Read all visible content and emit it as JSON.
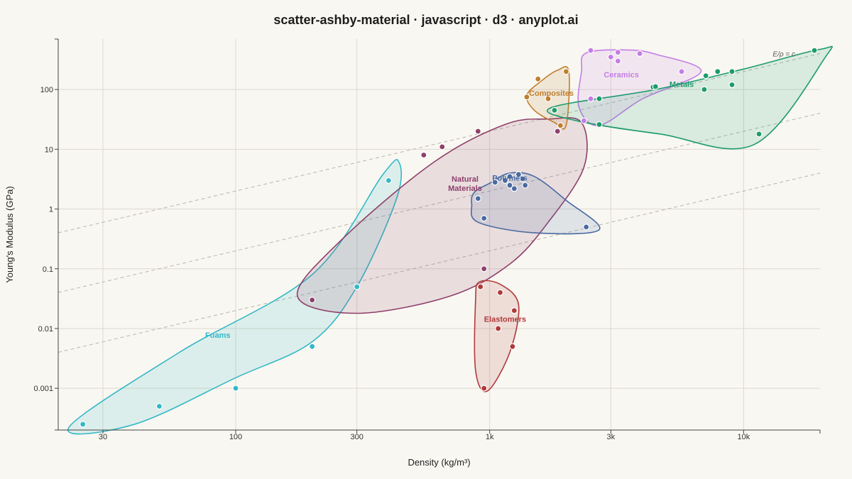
{
  "chart_data": {
    "type": "scatter",
    "title": "scatter-ashby-material · javascript · d3 · anyplot.ai",
    "xlabel": "Density (kg/m³)",
    "ylabel": "Young's Modulus (GPa)",
    "xscale": "log",
    "yscale": "log",
    "xlim": [
      20,
      20000
    ],
    "ylim": [
      0.0002,
      700
    ],
    "x_ticks": [
      {
        "value": 30,
        "label": "30"
      },
      {
        "value": 100,
        "label": "100"
      },
      {
        "value": 300,
        "label": "300"
      },
      {
        "value": 1000,
        "label": "1k"
      },
      {
        "value": 3000,
        "label": "3k"
      },
      {
        "value": 10000,
        "label": "10k"
      }
    ],
    "y_ticks": [
      {
        "value": 0.001,
        "label": "0.001"
      },
      {
        "value": 0.01,
        "label": "0.01"
      },
      {
        "value": 0.1,
        "label": "0.1"
      },
      {
        "value": 1,
        "label": "1"
      },
      {
        "value": 10,
        "label": "10"
      },
      {
        "value": 100,
        "label": "100"
      }
    ],
    "grid": true,
    "reference_line_label": "E/ρ = c",
    "reference_lines": [
      {
        "c": 0.02
      },
      {
        "c": 0.002
      },
      {
        "c": 0.0002
      }
    ],
    "series": [
      {
        "name": "Foams",
        "color": "#35b8c8",
        "label_at": [
          85,
          0.007
        ],
        "envelope": [
          [
            22,
            0.00022
          ],
          [
            60,
            0.004
          ],
          [
            200,
            0.08
          ],
          [
            380,
            3.8
          ],
          [
            440,
            6
          ],
          [
            430,
            1.5
          ],
          [
            300,
            0.05
          ],
          [
            200,
            0.006
          ],
          [
            100,
            0.0015
          ],
          [
            40,
            0.00025
          ]
        ],
        "points": [
          [
            25,
            0.00025
          ],
          [
            50,
            0.0005
          ],
          [
            100,
            0.001
          ],
          [
            200,
            0.005
          ],
          [
            300,
            0.05
          ],
          [
            400,
            3
          ]
        ]
      },
      {
        "name": "Natural Materials",
        "color": "#8e3f6a",
        "label_at": [
          800,
          2.4
        ],
        "envelope": [
          [
            175,
            0.035
          ],
          [
            260,
            0.3
          ],
          [
            600,
            6
          ],
          [
            1150,
            26
          ],
          [
            1700,
            32
          ],
          [
            2300,
            28
          ],
          [
            2350,
            5
          ],
          [
            1700,
            0.6
          ],
          [
            1200,
            0.12
          ],
          [
            700,
            0.035
          ],
          [
            300,
            0.018
          ]
        ],
        "points": [
          [
            200,
            0.03
          ],
          [
            550,
            8
          ],
          [
            650,
            11
          ],
          [
            900,
            20
          ],
          [
            950,
            0.1
          ],
          [
            1850,
            20
          ]
        ]
      },
      {
        "name": "Polymers",
        "color": "#4a6aa0",
        "label_at": [
          1200,
          3.0
        ],
        "envelope": [
          [
            870,
            1.9
          ],
          [
            1000,
            2.7
          ],
          [
            1200,
            4
          ],
          [
            1500,
            3.5
          ],
          [
            2000,
            1.4
          ],
          [
            2700,
            0.45
          ],
          [
            1500,
            0.4
          ],
          [
            900,
            0.6
          ],
          [
            850,
            1.2
          ]
        ],
        "points": [
          [
            900,
            1.5
          ],
          [
            950,
            0.7
          ],
          [
            1050,
            2.8
          ],
          [
            1150,
            3
          ],
          [
            1200,
            3.5
          ],
          [
            1300,
            3.8
          ],
          [
            1350,
            3.2
          ],
          [
            1380,
            2.5
          ],
          [
            1200,
            2.5
          ],
          [
            1250,
            2.2
          ],
          [
            2400,
            0.5
          ]
        ]
      },
      {
        "name": "Elastomers",
        "color": "#b03a3a",
        "label_at": [
          1150,
          0.013
        ],
        "envelope": [
          [
            910,
            0.06
          ],
          [
            1100,
            0.055
          ],
          [
            1300,
            0.025
          ],
          [
            1200,
            0.004
          ],
          [
            980,
            0.0009
          ],
          [
            880,
            0.002
          ],
          [
            880,
            0.03
          ]
        ],
        "points": [
          [
            920,
            0.05
          ],
          [
            950,
            0.001
          ],
          [
            1080,
            0.01
          ],
          [
            1100,
            0.04
          ],
          [
            1230,
            0.005
          ],
          [
            1250,
            0.02
          ]
        ]
      },
      {
        "name": "Composites",
        "color": "#bf7f2f",
        "label_at": [
          1750,
          78
        ],
        "envelope": [
          [
            1400,
            80
          ],
          [
            1600,
            140
          ],
          [
            1850,
            210
          ],
          [
            2050,
            200
          ],
          [
            2000,
            25
          ],
          [
            1800,
            28
          ],
          [
            1500,
            45
          ]
        ],
        "points": [
          [
            1400,
            75
          ],
          [
            1550,
            150
          ],
          [
            1700,
            70
          ],
          [
            1900,
            25
          ],
          [
            2000,
            200
          ]
        ]
      },
      {
        "name": "Ceramics",
        "color": "#c47de6",
        "label_at": [
          3300,
          160
        ],
        "envelope": [
          [
            2400,
            410
          ],
          [
            3500,
            460
          ],
          [
            4500,
            390
          ],
          [
            6800,
            200
          ],
          [
            4000,
            70
          ],
          [
            2700,
            25
          ],
          [
            2250,
            50
          ],
          [
            2300,
            200
          ]
        ],
        "points": [
          [
            2500,
            450
          ],
          [
            3000,
            350
          ],
          [
            3200,
            420
          ],
          [
            3200,
            300
          ],
          [
            3900,
            400
          ],
          [
            2350,
            30
          ],
          [
            2500,
            70
          ],
          [
            5700,
            200
          ]
        ]
      },
      {
        "name": "Metals",
        "color": "#1e9b6e",
        "label_at": [
          5700,
          110
        ],
        "envelope": [
          [
            1750,
            50
          ],
          [
            4500,
            100
          ],
          [
            10000,
            220
          ],
          [
            20000,
            470
          ],
          [
            21000,
            350
          ],
          [
            11000,
            12
          ],
          [
            4700,
            18
          ],
          [
            2200,
            30
          ]
        ],
        "points": [
          [
            1800,
            45
          ],
          [
            2700,
            70
          ],
          [
            2700,
            26
          ],
          [
            4400,
            110
          ],
          [
            4500,
            112
          ],
          [
            7000,
            100
          ],
          [
            7100,
            170
          ],
          [
            7900,
            200
          ],
          [
            9000,
            200
          ],
          [
            9000,
            120
          ],
          [
            11500,
            18
          ],
          [
            19000,
            450
          ]
        ]
      }
    ]
  }
}
